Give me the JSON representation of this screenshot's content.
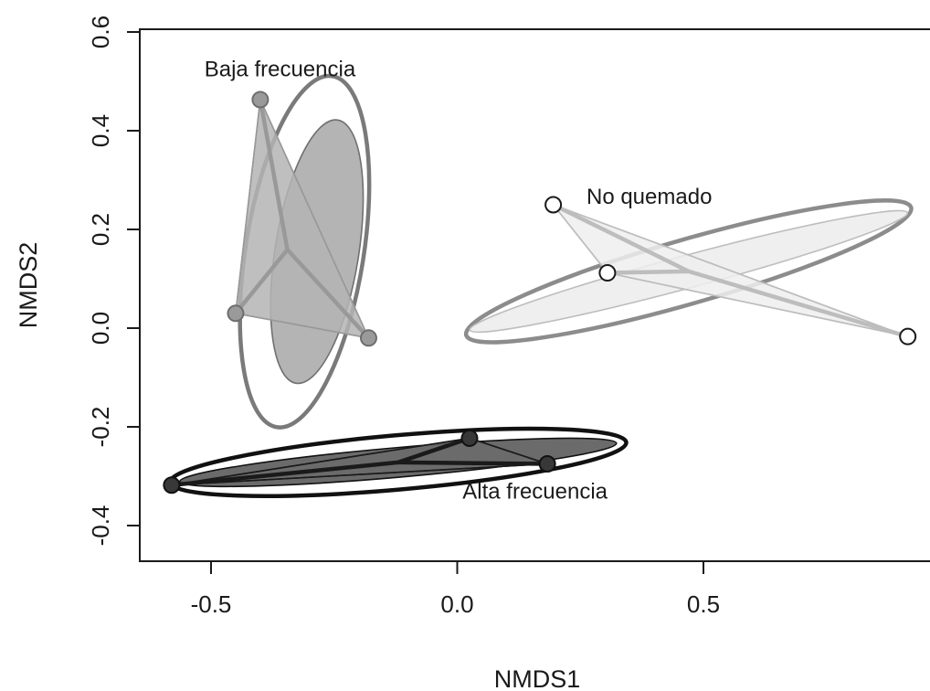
{
  "chart_data": {
    "type": "scatter",
    "xlabel": "NMDS1",
    "ylabel": "NMDS2",
    "xlim": [
      -0.72,
      0.93
    ],
    "ylim": [
      -0.475,
      0.615
    ],
    "x_ticks": [
      -0.5,
      0.0,
      0.5
    ],
    "x_tick_labels": [
      "-0.5",
      "0.0",
      "0.5"
    ],
    "y_ticks": [
      -0.4,
      -0.2,
      0.0,
      0.2,
      0.4,
      0.6
    ],
    "y_tick_labels": [
      "-0.4",
      "-0.2",
      "0.0",
      "0.2",
      "0.4",
      "0.6"
    ],
    "grid": false,
    "groups": [
      {
        "label": "Baja frecuencia",
        "label_pos": {
          "x": -0.36,
          "y": 0.51
        },
        "point_fill": "#9a9a9a",
        "point_stroke": "#6e6e6e",
        "hull_fill": "#b4b4b4",
        "line_color": "#999999",
        "centroid": {
          "x": -0.345,
          "y": 0.159
        },
        "points": [
          {
            "x": -0.4,
            "y": 0.463
          },
          {
            "x": -0.45,
            "y": 0.03
          },
          {
            "x": -0.18,
            "y": -0.02
          }
        ],
        "outer_ellipse": {
          "cx": -0.31,
          "cy": 0.155,
          "rx": 0.12,
          "ry": 0.36,
          "angle": 9,
          "stroke": "#7a7a7a"
        },
        "inner_ellipse": {
          "cx": -0.285,
          "cy": 0.155,
          "rx": 0.085,
          "ry": 0.27,
          "angle": 9,
          "stroke": "#707070",
          "fill": "#b4b4b4"
        }
      },
      {
        "label": "No quemado",
        "label_pos": {
          "x": 0.39,
          "y": 0.252
        },
        "point_fill": "#ffffff",
        "point_stroke": "#1a1a1a",
        "hull_fill": "#efefef",
        "line_color": "#bdbdbd",
        "centroid": {
          "x": 0.47,
          "y": 0.115
        },
        "points": [
          {
            "x": 0.195,
            "y": 0.25
          },
          {
            "x": 0.305,
            "y": 0.112
          },
          {
            "x": 0.915,
            "y": -0.017
          }
        ],
        "outer_ellipse": {
          "cx": 0.47,
          "cy": 0.115,
          "rx": 0.47,
          "ry": 0.065,
          "angle": -16,
          "stroke": "#8c8c8c"
        },
        "inner_ellipse": {
          "cx": 0.47,
          "cy": 0.115,
          "rx": 0.46,
          "ry": 0.033,
          "angle": -15,
          "stroke": "#bdbdbd",
          "fill": "#efefef"
        }
      },
      {
        "label": "Alta frecuencia",
        "label_pos": {
          "x": 0.158,
          "y": -0.345
        },
        "point_fill": "#383838",
        "point_stroke": "#111111",
        "hull_fill": "#6b6b6b",
        "line_color": "#1a1a1a",
        "centroid": {
          "x": -0.12,
          "y": -0.272
        },
        "points": [
          {
            "x": 0.025,
            "y": -0.223
          },
          {
            "x": 0.183,
            "y": -0.275
          },
          {
            "x": -0.58,
            "y": -0.318
          }
        ],
        "outer_ellipse": {
          "cx": -0.12,
          "cy": -0.272,
          "rx": 0.465,
          "ry": 0.055,
          "angle": -5,
          "stroke": "#111111"
        },
        "inner_ellipse": {
          "cx": -0.12,
          "cy": -0.272,
          "rx": 0.445,
          "ry": 0.03,
          "angle": -5,
          "stroke": "#111111",
          "fill": "#6b6b6b"
        }
      }
    ]
  }
}
